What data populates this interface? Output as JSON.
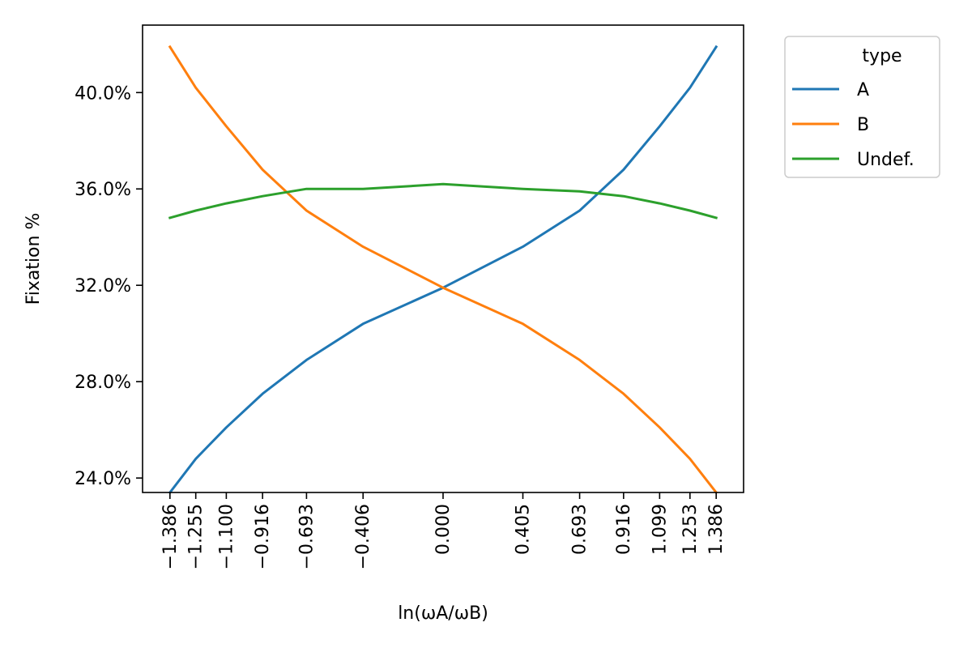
{
  "chart_data": {
    "type": "line",
    "xlabel": "ln(ωA/ωB)",
    "ylabel": "Fixation %",
    "x": [
      -1.386,
      -1.255,
      -1.1,
      -0.916,
      -0.693,
      -0.406,
      0.0,
      0.405,
      0.693,
      0.916,
      1.099,
      1.253,
      1.386
    ],
    "x_tick_labels": [
      "−1.386",
      "−1.255",
      "−1.100",
      "−0.916",
      "−0.693",
      "−0.406",
      "0.000",
      "0.405",
      "0.693",
      "0.916",
      "1.099",
      "1.253",
      "1.386"
    ],
    "y_ticks": [
      24.0,
      28.0,
      32.0,
      36.0,
      40.0
    ],
    "y_tick_labels": [
      "24.0%",
      "28.0%",
      "32.0%",
      "36.0%",
      "40.0%"
    ],
    "xlim": [
      -1.525,
      1.525
    ],
    "ylim": [
      23.4,
      42.8
    ],
    "grid": false,
    "legend": {
      "title": "type",
      "placement": "outside-top-right"
    },
    "series": [
      {
        "name": "A",
        "color": "#1f77b4",
        "values": [
          23.4,
          24.8,
          26.1,
          27.5,
          28.9,
          30.4,
          31.9,
          33.6,
          35.1,
          36.8,
          38.6,
          40.2,
          41.9
        ]
      },
      {
        "name": "B",
        "color": "#ff7f0e",
        "values": [
          41.9,
          40.2,
          38.6,
          36.8,
          35.1,
          33.6,
          31.9,
          30.4,
          28.9,
          27.5,
          26.1,
          24.8,
          23.4
        ]
      },
      {
        "name": "Undef.",
        "color": "#2ca02c",
        "values": [
          34.8,
          35.1,
          35.4,
          35.7,
          36.0,
          36.0,
          36.2,
          36.0,
          35.9,
          35.7,
          35.4,
          35.1,
          34.8
        ]
      }
    ]
  }
}
